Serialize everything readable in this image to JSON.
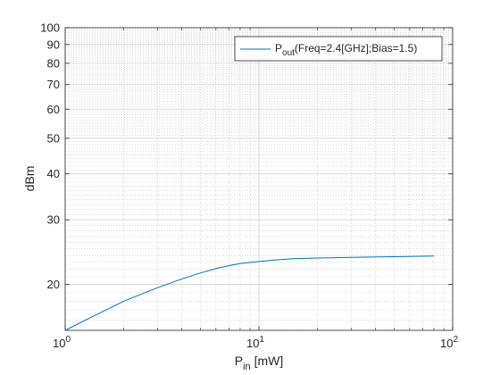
{
  "chart_data": {
    "type": "line",
    "title": "",
    "xlabel": {
      "main": "P",
      "sub": "in",
      "unit": "[mW]"
    },
    "ylabel": "dBm",
    "xscale": "log",
    "yscale": "log",
    "xlim": [
      1,
      100
    ],
    "ylim": [
      15,
      100
    ],
    "grid": true,
    "minor_grid": true,
    "legend_placement": "top-right",
    "x_ticks": [
      {
        "value": 1,
        "base": "10",
        "exp": "0"
      },
      {
        "value": 10,
        "base": "10",
        "exp": "1"
      },
      {
        "value": 100,
        "base": "10",
        "exp": "2"
      }
    ],
    "y_ticks": [
      20,
      30,
      40,
      50,
      60,
      70,
      80,
      90,
      100
    ],
    "series": [
      {
        "name": {
          "main": "P",
          "sub": "out",
          "rest": "(Freq=2.4[GHz];Bias=1.5)"
        },
        "color": "#0072BD",
        "x": [
          1.0,
          1.5,
          2.0,
          3.0,
          4.0,
          5.0,
          6.0,
          7.0,
          8.0,
          10.0,
          12.0,
          15.0,
          20.0,
          30.0,
          50.0,
          80.0
        ],
        "y": [
          15.0,
          16.7,
          18.0,
          19.6,
          20.7,
          21.5,
          22.1,
          22.5,
          22.8,
          23.1,
          23.3,
          23.5,
          23.6,
          23.7,
          23.8,
          23.9
        ]
      }
    ]
  }
}
